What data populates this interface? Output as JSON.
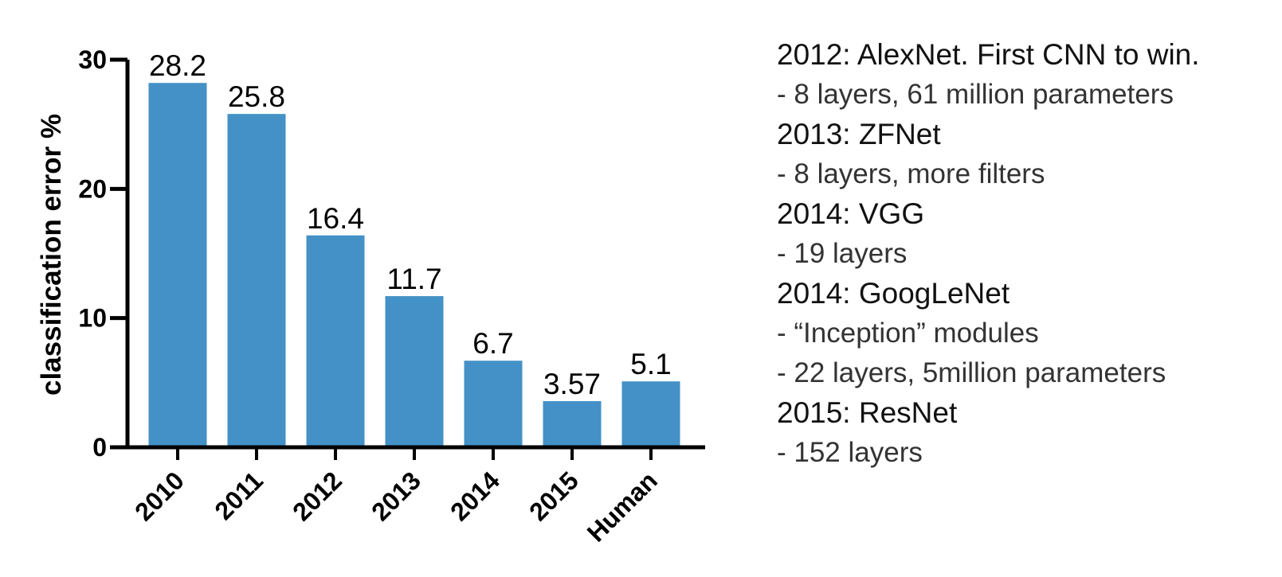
{
  "chart_data": {
    "type": "bar",
    "categories": [
      "2010",
      "2011",
      "2012",
      "2013",
      "2014",
      "2015",
      "Human"
    ],
    "values": [
      28.2,
      25.8,
      16.4,
      11.7,
      6.7,
      3.57,
      5.1
    ],
    "data_labels": [
      "28.2",
      "25.8",
      "16.4",
      "11.7",
      "6.7",
      "3.57",
      "5.1"
    ],
    "title": "",
    "xlabel": "",
    "ylabel": "classification error %",
    "ylim": [
      0,
      30
    ],
    "yticks": [
      "0",
      "10",
      "20",
      "30"
    ],
    "bar_color": "#4391c7",
    "grid": false,
    "legend": "none"
  },
  "notes": [
    {
      "heading": "2012: AlexNet. First CNN to win.",
      "items": [
        "-   8 layers, 61  million parameters"
      ]
    },
    {
      "heading": "2013: ZFNet",
      "items": [
        "-   8 layers, more filters"
      ]
    },
    {
      "heading": "2014: VGG",
      "items": [
        "-    19 layers"
      ]
    },
    {
      "heading": "2014: GoogLeNet",
      "items": [
        "-    “Inception” modules",
        "-   22 layers, 5million parameters"
      ]
    },
    {
      "heading": "2015: ResNet",
      "items": [
        "-    152 layers"
      ]
    }
  ]
}
